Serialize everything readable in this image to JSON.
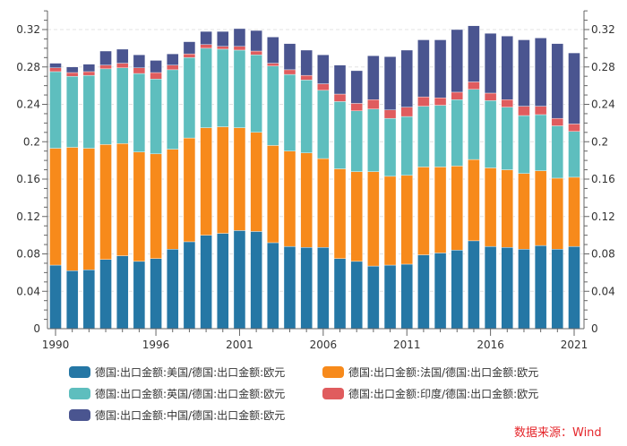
{
  "chart_data": {
    "type": "bar",
    "stacked": true,
    "title": "",
    "xlabel": "",
    "ylabel": "",
    "ylim": [
      0,
      0.34
    ],
    "y_ticks": [
      "0",
      "0.04",
      "0.08",
      "0.12",
      "0.16",
      "0.2",
      "0.24",
      "0.28",
      "0.32"
    ],
    "y_tick_values": [
      0,
      0.04,
      0.08,
      0.12,
      0.16,
      0.2,
      0.24,
      0.28,
      0.32
    ],
    "x_tick_labels": [
      "1990",
      "1996",
      "2001",
      "2006",
      "2011",
      "2016",
      "2021"
    ],
    "categories": [
      "1990",
      "1991",
      "1992",
      "1993",
      "1994",
      "1995",
      "1996",
      "1997",
      "1998",
      "1999",
      "2000",
      "2001",
      "2002",
      "2003",
      "2004",
      "2005",
      "2006",
      "2007",
      "2008",
      "2009",
      "2010",
      "2011",
      "2012",
      "2013",
      "2014",
      "2015",
      "2016",
      "2017",
      "2018",
      "2019",
      "2020",
      "2021"
    ],
    "grid": true,
    "legend_position": "bottom",
    "series": [
      {
        "name": "德国:出口金额:美国/德国:出口金额:欧元",
        "color": "#2577a5",
        "values": [
          0.068,
          0.062,
          0.063,
          0.074,
          0.078,
          0.072,
          0.075,
          0.085,
          0.093,
          0.1,
          0.102,
          0.105,
          0.104,
          0.092,
          0.088,
          0.087,
          0.087,
          0.075,
          0.072,
          0.067,
          0.068,
          0.069,
          0.079,
          0.081,
          0.084,
          0.094,
          0.088,
          0.087,
          0.085,
          0.089,
          0.085,
          0.088
        ]
      },
      {
        "name": "德国:出口金额:法国/德国:出口金额:欧元",
        "color": "#f78a1b",
        "values": [
          0.125,
          0.132,
          0.13,
          0.123,
          0.12,
          0.117,
          0.112,
          0.107,
          0.111,
          0.115,
          0.114,
          0.11,
          0.106,
          0.104,
          0.102,
          0.101,
          0.095,
          0.096,
          0.096,
          0.101,
          0.095,
          0.095,
          0.094,
          0.092,
          0.09,
          0.087,
          0.084,
          0.083,
          0.081,
          0.08,
          0.076,
          0.074
        ]
      },
      {
        "name": "德国:出口金额:英国/德国:出口金额:欧元",
        "color": "#5ebebe",
        "values": [
          0.082,
          0.076,
          0.078,
          0.081,
          0.081,
          0.084,
          0.08,
          0.085,
          0.086,
          0.085,
          0.083,
          0.083,
          0.083,
          0.085,
          0.082,
          0.078,
          0.073,
          0.072,
          0.065,
          0.067,
          0.062,
          0.063,
          0.065,
          0.066,
          0.071,
          0.075,
          0.072,
          0.067,
          0.062,
          0.06,
          0.056,
          0.049
        ]
      },
      {
        "name": "德国:出口金额:印度/德国:出口金额:欧元",
        "color": "#e05c5e",
        "values": [
          0.004,
          0.004,
          0.004,
          0.004,
          0.005,
          0.006,
          0.007,
          0.005,
          0.004,
          0.004,
          0.003,
          0.004,
          0.004,
          0.003,
          0.005,
          0.005,
          0.007,
          0.008,
          0.008,
          0.01,
          0.009,
          0.01,
          0.01,
          0.008,
          0.008,
          0.008,
          0.008,
          0.008,
          0.01,
          0.009,
          0.008,
          0.008
        ]
      },
      {
        "name": "德国:出口金额:中国/德国:出口金额:欧元",
        "color": "#4a5590",
        "values": [
          0.005,
          0.006,
          0.008,
          0.015,
          0.015,
          0.014,
          0.013,
          0.012,
          0.013,
          0.014,
          0.016,
          0.019,
          0.022,
          0.028,
          0.028,
          0.027,
          0.031,
          0.031,
          0.035,
          0.047,
          0.057,
          0.061,
          0.061,
          0.062,
          0.067,
          0.06,
          0.064,
          0.068,
          0.071,
          0.073,
          0.08,
          0.076
        ]
      }
    ]
  },
  "legend": {
    "items": [
      {
        "label": "德国:出口金额:美国/德国:出口金额:欧元",
        "color": "#2577a5"
      },
      {
        "label": "德国:出口金额:法国/德国:出口金额:欧元",
        "color": "#f78a1b"
      },
      {
        "label": "德国:出口金额:英国/德国:出口金额:欧元",
        "color": "#5ebebe"
      },
      {
        "label": "德国:出口金额:印度/德国:出口金额:欧元",
        "color": "#e05c5e"
      },
      {
        "label": "德国:出口金额:中国/德国:出口金额:欧元",
        "color": "#4a5590"
      }
    ]
  },
  "source": "数据来源：Wind"
}
